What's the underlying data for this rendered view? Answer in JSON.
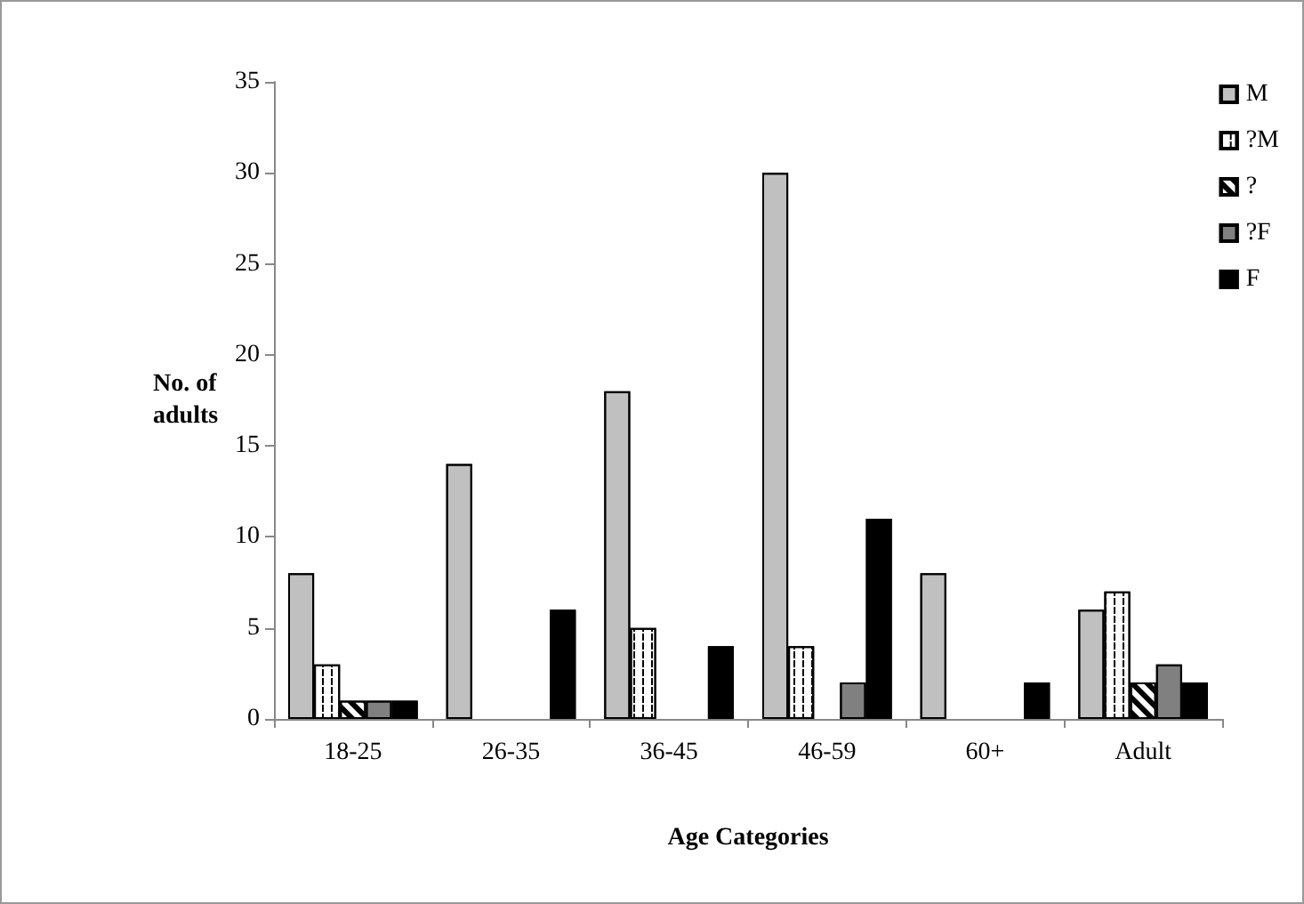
{
  "chart_data": {
    "type": "bar",
    "xlabel": "Age Categories",
    "ylabel": "No. of adults",
    "categories": [
      "18-25",
      "26-35",
      "36-45",
      "46-59",
      "60+",
      "Adult"
    ],
    "series": [
      {
        "name": "M",
        "color": "#c0c0c0",
        "values": [
          8,
          14,
          18,
          30,
          8,
          6
        ]
      },
      {
        "name": "?M",
        "color": "#ffffff",
        "values": [
          3,
          0,
          5,
          4,
          0,
          7
        ]
      },
      {
        "name": "?",
        "color": "#ffffff",
        "values": [
          1,
          0,
          0,
          0,
          0,
          2
        ]
      },
      {
        "name": "?F",
        "color": "#808080",
        "values": [
          1,
          0,
          0,
          2,
          0,
          3
        ]
      },
      {
        "name": "F",
        "color": "#000000",
        "values": [
          1,
          6,
          4,
          11,
          2,
          2
        ]
      }
    ],
    "ylim": [
      0,
      35
    ],
    "yticks": [
      0,
      5,
      10,
      15,
      20,
      25,
      30,
      35
    ],
    "grid": false,
    "legend": "top right"
  }
}
